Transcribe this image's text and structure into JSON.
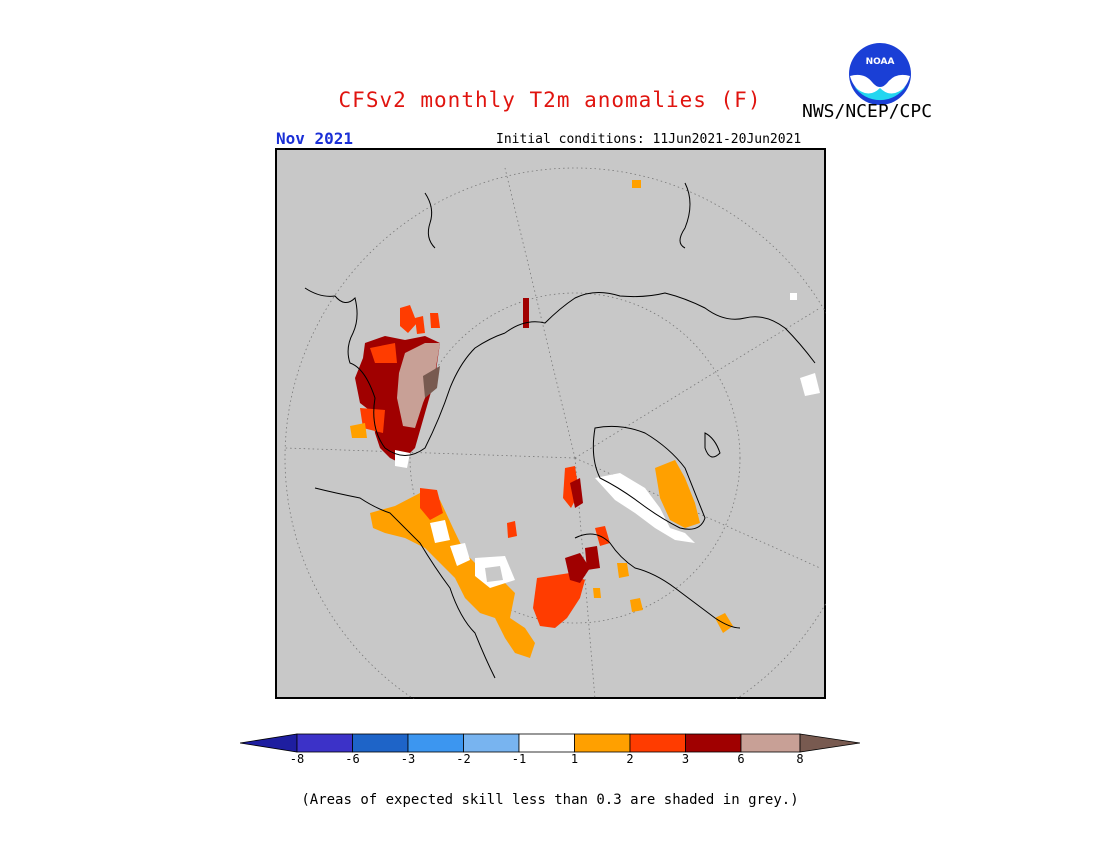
{
  "header": {
    "title": "CFSv2 monthly T2m anomalies (F)",
    "agency": "NWS/NCEP/CPC",
    "month": "Nov 2021",
    "initial_conditions": "Initial conditions: 11Jun2021-20Jun2021",
    "logo_text": "NOAA"
  },
  "colors": {
    "land_mask": "#c8c8c8",
    "coast": "#000000",
    "white_band": "#ffffff",
    "orange": "#ffa000",
    "red_orange": "#ff3c00",
    "dark_red": "#a00000",
    "tan": "#c8a096",
    "brown": "#785a50"
  },
  "legend": {
    "tick_labels": [
      "-8",
      "-6",
      "-3",
      "-2",
      "-1",
      "1",
      "2",
      "3",
      "6",
      "8"
    ],
    "segments": [
      {
        "color": "#1e1ea0",
        "kind": "arrow-left"
      },
      {
        "color": "#3c32c8"
      },
      {
        "color": "#1e64c8"
      },
      {
        "color": "#3c96f0"
      },
      {
        "color": "#78b4f0"
      },
      {
        "color": "#ffffff"
      },
      {
        "color": "#ffa000"
      },
      {
        "color": "#ff3c00"
      },
      {
        "color": "#a00000"
      },
      {
        "color": "#c8a096"
      },
      {
        "color": "#785a50",
        "kind": "arrow-right"
      }
    ]
  },
  "footnote": "(Areas of expected skill less than 0.3 are shaded in grey.)"
}
